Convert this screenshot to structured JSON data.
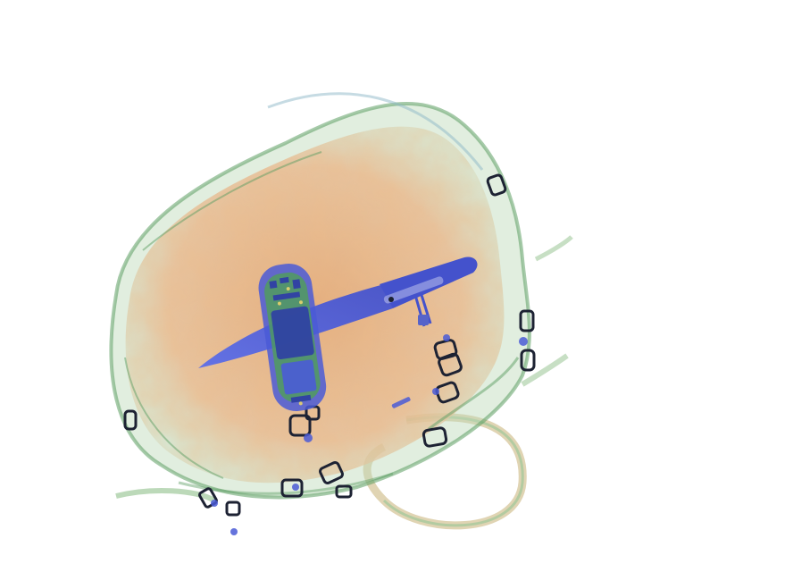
{
  "image": {
    "kind": "xray-baggage-scan",
    "colors": {
      "background": "#ffffff",
      "organic": "#d9925a",
      "organic_light": "#e8b58a",
      "fabric_edge": "#5d9e63",
      "metal": "#4a5bd6",
      "metal_dark": "#2d3aa8",
      "circuit_green": "#4fa34f",
      "ring_outline": "#1d2233",
      "handle": "#d8c9a0"
    },
    "objects": [
      {
        "name": "bag",
        "label": ""
      },
      {
        "name": "kitchen-knife",
        "label": ""
      },
      {
        "name": "mobile-phone",
        "label": ""
      },
      {
        "name": "strap-handle",
        "label": ""
      }
    ]
  }
}
